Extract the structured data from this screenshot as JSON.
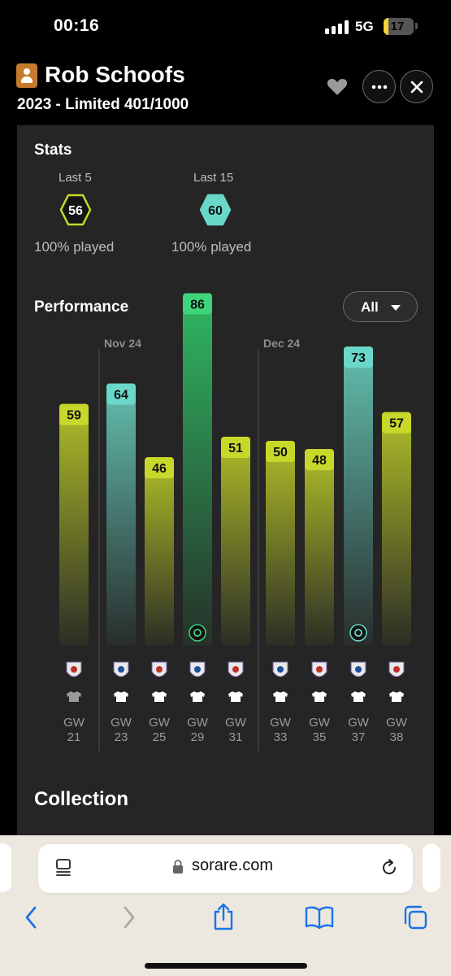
{
  "status_bar": {
    "time": "00:16",
    "network": "5G",
    "battery": "17",
    "battery_fraction": 0.17
  },
  "header": {
    "title": "Rob Schoofs",
    "subtitle": "2023 - Limited 401/1000"
  },
  "stats": {
    "title": "Stats",
    "items": [
      {
        "label": "Last 5",
        "score": "56",
        "played": "100% played",
        "color": "#c8d82a"
      },
      {
        "label": "Last 15",
        "score": "60",
        "played": "100% played",
        "color": "#6ad8c8"
      }
    ]
  },
  "performance": {
    "title": "Performance",
    "filter": "All"
  },
  "colors": {
    "yellow": "#c8d82a",
    "teal": "#6ad8c8",
    "green": "#3ed47a",
    "panel": "#252525"
  },
  "chart_data": {
    "type": "bar",
    "month_labels": [
      {
        "label": "Nov 24",
        "before_index": 1
      },
      {
        "label": "Dec 24",
        "before_index": 5
      }
    ],
    "bars": [
      {
        "gw": "GW\n21",
        "value": 59,
        "tier": "yellow",
        "badge": null,
        "played": false
      },
      {
        "gw": "GW\n23",
        "value": 64,
        "tier": "teal",
        "badge": null,
        "played": true
      },
      {
        "gw": "GW\n25",
        "value": 46,
        "tier": "yellow",
        "badge": null,
        "played": true
      },
      {
        "gw": "GW\n29",
        "value": 86,
        "tier": "green",
        "badge": "boot-icon",
        "played": true
      },
      {
        "gw": "GW\n31",
        "value": 51,
        "tier": "yellow",
        "badge": null,
        "played": true
      },
      {
        "gw": "GW\n33",
        "value": 50,
        "tier": "yellow",
        "badge": null,
        "played": true
      },
      {
        "gw": "GW\n35",
        "value": 48,
        "tier": "yellow",
        "badge": null,
        "played": true
      },
      {
        "gw": "GW\n37",
        "value": 73,
        "tier": "teal",
        "badge": "ball-assist-icon",
        "played": true
      },
      {
        "gw": "GW\n38",
        "value": 57,
        "tier": "yellow",
        "badge": null,
        "played": true
      }
    ]
  },
  "collection": {
    "title": "Collection"
  },
  "browser": {
    "url": "sorare.com"
  }
}
